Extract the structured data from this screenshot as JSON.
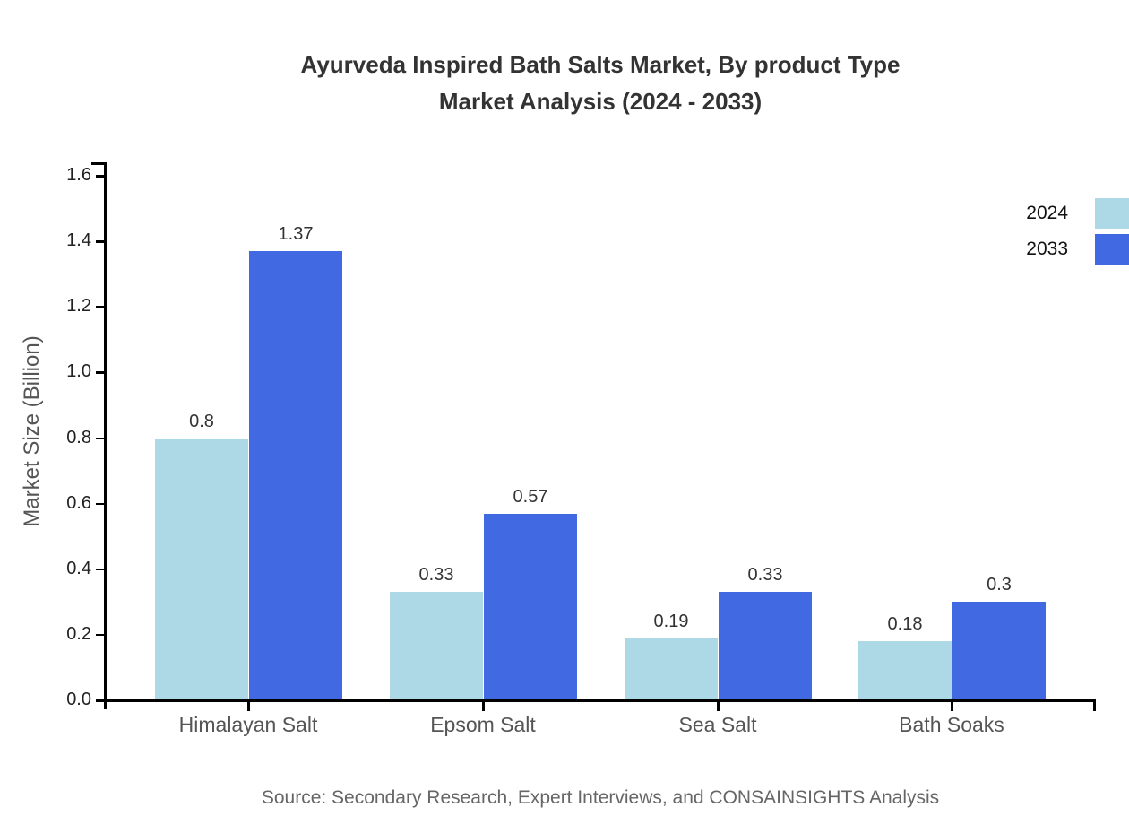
{
  "title": {
    "line1": "Ayurveda Inspired Bath Salts Market, By product Type",
    "line2": "Market Analysis (2024 - 2033)"
  },
  "source": "Source: Secondary Research, Expert Interviews, and CONSAINSIGHTS Analysis",
  "legend": {
    "items": [
      {
        "label": "2024",
        "color": "#add8e6"
      },
      {
        "label": "2033",
        "color": "#4169e1"
      }
    ]
  },
  "chart_data": {
    "type": "bar",
    "title": "Ayurveda Inspired Bath Salts Market, By product Type Market Analysis (2024 - 2033)",
    "categories": [
      "Himalayan Salt",
      "Epsom Salt",
      "Sea Salt",
      "Bath Soaks"
    ],
    "series": [
      {
        "name": "2024",
        "color": "#add8e6",
        "values": [
          0.8,
          0.33,
          0.19,
          0.18
        ]
      },
      {
        "name": "2033",
        "color": "#4169e1",
        "values": [
          1.37,
          0.57,
          0.33,
          0.3
        ]
      }
    ],
    "xlabel": "",
    "ylabel": "Market Size (Billion)",
    "ylim": [
      0.0,
      1.6
    ],
    "yticks": [
      0.0,
      0.2,
      0.4,
      0.6,
      0.8,
      1.0,
      1.2,
      1.4,
      1.6
    ],
    "grid": false,
    "legend_position": "upper-right-outside",
    "bar_value_labels": true,
    "axis_color": "#000000",
    "text_color": "#333333"
  }
}
